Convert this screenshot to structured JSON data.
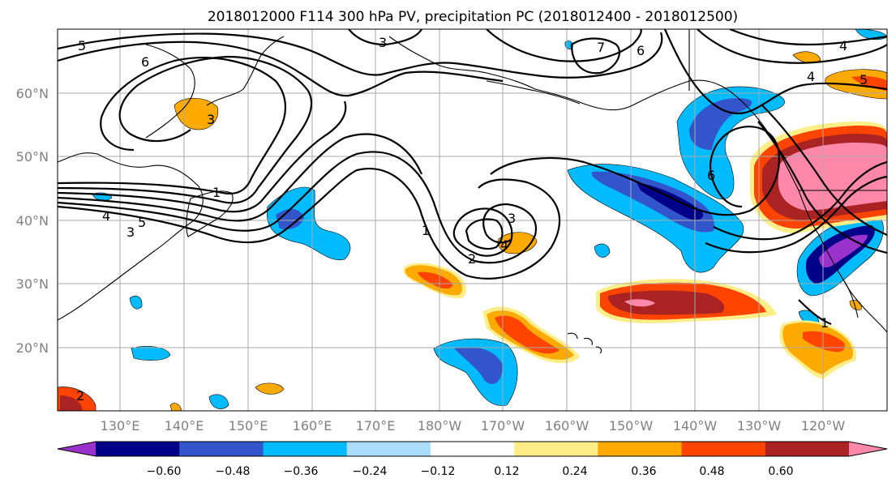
{
  "title": "2018012000 F114 300 hPa PV, precipitation PC (2018012400 - 2018012500)",
  "lat_labels": [
    "60°N",
    "50°N",
    "40°N",
    "30°N",
    "20°N"
  ],
  "lon_labels": [
    "130°E",
    "140°E",
    "150°E",
    "160°E",
    "170°E",
    "180°W",
    "170°W",
    "160°W",
    "150°W",
    "140°W",
    "130°W",
    "120°W"
  ],
  "colorbar": {
    "colors": [
      "#9933cc",
      "#000088",
      "#3355cc",
      "#00bbff",
      "#aaddff",
      "#ffffff",
      "#ffee88",
      "#ffaa00",
      "#ff4400",
      "#aa2222",
      "#ff88aa"
    ],
    "tick_labels": [
      "−0.60",
      "−0.48",
      "−0.36",
      "−0.24",
      "−0.12",
      "0.12",
      "0.24",
      "0.36",
      "0.48",
      "0.60"
    ]
  },
  "contour_labels": [
    "5",
    "6",
    "3",
    "3",
    "7",
    "6",
    "4",
    "4",
    "5",
    "1",
    "2",
    "3",
    "4",
    "5",
    "6",
    "1",
    "1",
    "3",
    "4",
    "2",
    "5",
    "3"
  ],
  "legend_colors": {
    "contour": "#000000",
    "grid": "#a8a8a8",
    "tick_text": "#808080"
  }
}
